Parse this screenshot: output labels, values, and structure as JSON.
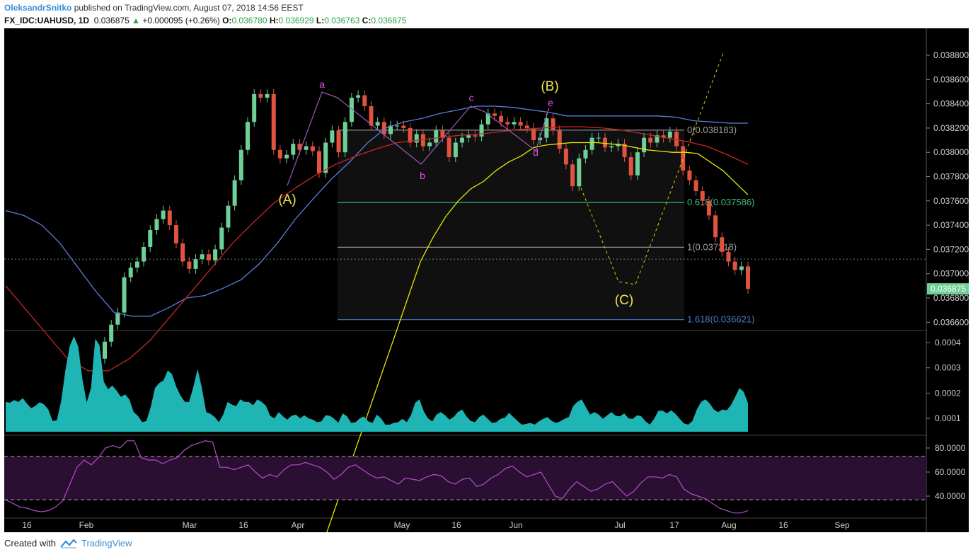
{
  "header": {
    "author": "OleksandrSnitko",
    "published": " published on TradingView.com, August 07, 2018 14:56 EEST",
    "symbol": "FX_IDC:UAHUSD, 1D",
    "last": "0.036875",
    "change": "+0.000095 (+0.26%)",
    "open_label": "O:",
    "open": "0.036780",
    "high_label": "H:",
    "high": "0.036929",
    "low_label": "L:",
    "low": "0.036763",
    "close_label": "C:",
    "close": "0.036875"
  },
  "footer": {
    "created_with": "Created with",
    "brand": "TradingView"
  },
  "colors": {
    "up": "#6fcf97",
    "down": "#e0533e",
    "bb_upper": "#5b7fd6",
    "ma_red": "#c62828",
    "ma_yellow": "#e6e600",
    "volatility": "#1fb5b5",
    "rsi": "#b24fc8",
    "wave_label": "#f0e84a",
    "subwave_label": "#e84fe8"
  },
  "chart_data": [
    {
      "type": "candlestick",
      "title": "FX_IDC:UAHUSD, 1D",
      "x_ticks": [
        "16",
        "Feb",
        "Mar",
        "16",
        "Apr",
        "May",
        "16",
        "Jun",
        "Jul",
        "17",
        "Aug",
        "16",
        "Sep"
      ],
      "y_ticks": [
        "0.038800",
        "0.038600",
        "0.038400",
        "0.038200",
        "0.038000",
        "0.037800",
        "0.037600",
        "0.037400",
        "0.037200",
        "0.037000",
        "0.036800",
        "0.036600"
      ],
      "ylim": [
        0.0365,
        0.039
      ],
      "last_price_label": "0.036875",
      "closes": [
        0.03644,
        0.03658,
        0.03668,
        0.03697,
        0.03705,
        0.0371,
        0.03722,
        0.03736,
        0.03745,
        0.03752,
        0.0374,
        0.03725,
        0.0371,
        0.03704,
        0.03712,
        0.03716,
        0.03711,
        0.0372,
        0.03738,
        0.03756,
        0.03777,
        0.03802,
        0.03825,
        0.03848,
        0.03845,
        0.03848,
        0.03802,
        0.03795,
        0.03798,
        0.03807,
        0.03802,
        0.03805,
        0.03801,
        0.03783,
        0.03808,
        0.03818,
        0.038,
        0.03825,
        0.03845,
        0.03847,
        0.03838,
        0.03822,
        0.03825,
        0.03815,
        0.03822,
        0.03822,
        0.0382,
        0.03808,
        0.03815,
        0.03805,
        0.03808,
        0.03818,
        0.03812,
        0.03796,
        0.03808,
        0.03812,
        0.03814,
        0.03813,
        0.03823,
        0.03832,
        0.0383,
        0.03825,
        0.03823,
        0.03825,
        0.03822,
        0.0382,
        0.0381,
        0.03812,
        0.03828,
        0.03818,
        0.03803,
        0.0379,
        0.03772,
        0.03795,
        0.03802,
        0.03812,
        0.03812,
        0.03804,
        0.03805,
        0.03807,
        0.03796,
        0.03781,
        0.038,
        0.03812,
        0.03808,
        0.03814,
        0.03812,
        0.03817,
        0.03805,
        0.03785,
        0.03777,
        0.03768,
        0.0376,
        0.03748,
        0.0373,
        0.03718,
        0.0371,
        0.03703,
        0.03706,
        0.036875
      ],
      "bollinger_upper": [
        0.03752,
        0.03748,
        0.0374,
        0.03725,
        0.03705,
        0.03685,
        0.03668,
        0.03665,
        0.03665,
        0.03672,
        0.0368,
        0.03682,
        0.03688,
        0.03695,
        0.03708,
        0.03725,
        0.03745,
        0.03762,
        0.03778,
        0.03792,
        0.03808,
        0.0382,
        0.03825,
        0.03828,
        0.03832,
        0.03835,
        0.03838,
        0.03838,
        0.03837,
        0.03835,
        0.03833,
        0.0383,
        0.0383,
        0.0383,
        0.0383,
        0.0383,
        0.0383,
        0.03829,
        0.03826,
        0.03825,
        0.03824,
        0.03824
      ],
      "bollinger_lower": [
        0.0345,
        0.0347,
        0.035,
        0.0353,
        0.0356,
        0.0359,
        0.0362,
        0.0365,
        0.0368,
        0.0371,
        0.0373,
        0.03747,
        0.0376,
        0.0377,
        0.03776,
        0.03785,
        0.03792,
        0.03797,
        0.03804,
        0.03806,
        0.03807,
        0.03808,
        0.03808,
        0.03808,
        0.03807,
        0.03806,
        0.03804,
        0.03802,
        0.03801,
        0.038,
        0.038,
        0.03799,
        0.03792,
        0.03785,
        0.03775,
        0.03765
      ],
      "ma_red": [
        0.0369,
        0.0367,
        0.0365,
        0.0363,
        0.0362,
        0.0362,
        0.0363,
        0.03645,
        0.03665,
        0.03685,
        0.03705,
        0.03725,
        0.03742,
        0.03758,
        0.0377,
        0.03781,
        0.0379,
        0.03797,
        0.03803,
        0.03808,
        0.0381,
        0.03812,
        0.03814,
        0.03815,
        0.03817,
        0.03819,
        0.0382,
        0.03821,
        0.03821,
        0.0382,
        0.03818,
        0.03815,
        0.03812,
        0.03809,
        0.03805,
        0.03798,
        0.0379
      ]
    },
    {
      "type": "area",
      "title": "",
      "y_ticks": [
        "0.0004",
        "0.0003",
        "0.0002",
        "0.0001"
      ],
      "ylim": [
        5e-05,
        0.00042
      ],
      "values": [
        0.000165,
        0.000162,
        0.000172,
        0.000165,
        0.00018,
        0.000158,
        0.00014,
        0.00015,
        0.000164,
        0.000155,
        0.000135,
        9e-05,
        9.2e-05,
        0.000168,
        0.00029,
        0.000385,
        0.000425,
        0.000385,
        0.000255,
        0.000163,
        0.00022,
        0.000415,
        0.00039,
        0.000245,
        0.000215,
        0.00023,
        0.00021,
        0.000185,
        0.000195,
        0.000175,
        0.000125,
        0.00011,
        8.5e-05,
        9e-05,
        0.000145,
        0.00022,
        0.00024,
        0.00025,
        0.00029,
        0.000275,
        0.000225,
        0.00019,
        0.000165,
        0.000165,
        0.000225,
        0.000295,
        0.00022,
        0.000125,
        0.000118,
        0.000105,
        8.5e-05,
        0.000115,
        0.000165,
        0.000155,
        0.000148,
        0.000175,
        0.000165,
        0.000165,
        0.000152,
        0.000175,
        0.000165,
        0.00015,
        0.00011,
        0.0001,
        0.000125,
        0.000108,
        9.5e-05,
        0.00011,
        0.000115,
        0.0001,
        0.000112,
        0.0001,
        9.5e-05,
        8.5e-05,
        8.8e-05,
        0.000112,
        0.00011,
        9.8e-05,
        8.3e-05,
        0.00012,
        0.000108,
        8.2e-05,
        8.5e-05,
        0.0001,
        0.000108,
        8.8e-05,
        8.2e-05,
        0.000115,
        0.0001,
        7.5e-05,
        7.5e-05,
        8.2e-05,
        8.5e-05,
        9.8e-05,
        8.5e-05,
        0.000112,
        0.000162,
        0.000175,
        0.000128,
        0.0001,
        8.8e-05,
        0.000115,
        0.000125,
        0.000112,
        9.5e-05,
        0.000105,
        0.000125,
        0.000135,
        0.000108,
        9e-05,
        8.5e-05,
        0.000105,
        0.000115,
        9.8e-05,
        8.2e-05,
        8.5e-05,
        9.8e-05,
        0.000102,
        0.000122,
        0.000105,
        9e-05,
        7.5e-05,
        7.8e-05,
        8.2e-05,
        7.5e-05,
        8.8e-05,
        9.8e-05,
        0.000105,
        9e-05,
        8.2e-05,
        8.8e-05,
        9.8e-05,
        0.000105,
        0.000148,
        0.000165,
        0.000175,
        0.000145,
        0.000115,
        0.000125,
        0.000115,
        9.8e-05,
        0.000112,
        0.000125,
        0.00011,
        0.000108,
        0.00012,
        0.0001,
        9.8e-05,
        0.000112,
        0.000108,
        8.8e-05,
        7.5e-05,
        9.8e-05,
        0.00013,
        0.00013,
        0.00012,
        0.000132,
        0.000118,
        9.8e-05,
        8e-05,
        7.5e-05,
        9e-05,
        0.000135,
        0.000165,
        0.000175,
        0.00016,
        0.000135,
        0.000125,
        0.000135,
        0.000132,
        0.000152,
        0.000185,
        0.00022,
        0.000205,
        0.00016
      ]
    },
    {
      "type": "line",
      "title": "",
      "y_ticks": [
        "80.0000",
        "60.0000",
        "40.0000"
      ],
      "ylim": [
        22,
        90
      ],
      "upper_band": 73,
      "lower_band": 37,
      "values": [
        37,
        34,
        31,
        30,
        28,
        27,
        28,
        31,
        36,
        50,
        64,
        70,
        66,
        72,
        80,
        82,
        80,
        86,
        86,
        72,
        70,
        70,
        67,
        70,
        72,
        78,
        82,
        84,
        86,
        85,
        64,
        64,
        62,
        64,
        66,
        60,
        55,
        58,
        56,
        62,
        66,
        66,
        68,
        66,
        64,
        60,
        54,
        58,
        64,
        66,
        62,
        58,
        55,
        56,
        53,
        50,
        55,
        54,
        53,
        56,
        58,
        57,
        52,
        50,
        54,
        55,
        48,
        50,
        55,
        58,
        63,
        65,
        60,
        56,
        58,
        60,
        50,
        40,
        38,
        46,
        52,
        48,
        44,
        46,
        50,
        52,
        46,
        40,
        44,
        51,
        56,
        56,
        55,
        58,
        56,
        46,
        42,
        40,
        38,
        34,
        30,
        28,
        26,
        26,
        28
      ]
    }
  ],
  "annotations": {
    "waves": [
      "(A)",
      "(B)",
      "(C)"
    ],
    "subwaves": [
      "a",
      "b",
      "c",
      "d",
      "e"
    ],
    "fib": [
      {
        "label": "0(0.038183)",
        "color": "#9e9e9e"
      },
      {
        "label": "0.618(0.037586)",
        "color": "#3fbf7f"
      },
      {
        "label": "1(0.037218)",
        "color": "#9e9e9e"
      },
      {
        "label": "1.618(0.036621)",
        "color": "#4a7bc8"
      }
    ]
  }
}
